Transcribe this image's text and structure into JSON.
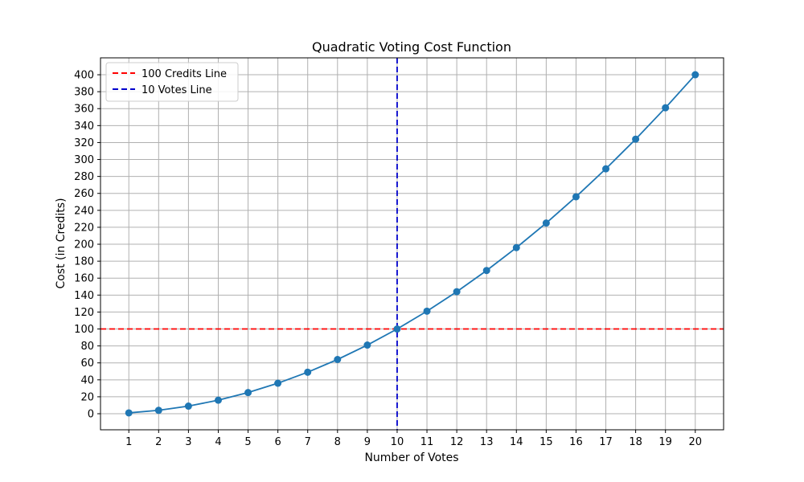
{
  "chart_data": {
    "type": "line",
    "title": "Quadratic Voting Cost Function",
    "xlabel": "Number of Votes",
    "ylabel": "Cost (in Credits)",
    "x": [
      1,
      2,
      3,
      4,
      5,
      6,
      7,
      8,
      9,
      10,
      11,
      12,
      13,
      14,
      15,
      16,
      17,
      18,
      19,
      20
    ],
    "series": [
      {
        "values": [
          1,
          4,
          9,
          16,
          25,
          36,
          49,
          64,
          81,
          100,
          121,
          144,
          169,
          196,
          225,
          256,
          289,
          324,
          361,
          400
        ],
        "color": "#1f77b4",
        "marker": "circle"
      }
    ],
    "reference_lines": [
      {
        "name": "100 Credits Line",
        "orientation": "horizontal",
        "value": 100,
        "color": "#ff0000",
        "style": "dashed"
      },
      {
        "name": "10 Votes Line",
        "orientation": "vertical",
        "value": 10,
        "color": "#0000cc",
        "style": "dashed"
      }
    ],
    "xticks": [
      "1",
      "2",
      "3",
      "4",
      "5",
      "6",
      "7",
      "8",
      "9",
      "10",
      "11",
      "12",
      "13",
      "14",
      "15",
      "16",
      "17",
      "18",
      "19",
      "20"
    ],
    "yticks": [
      "0",
      "20",
      "40",
      "60",
      "80",
      "100",
      "120",
      "140",
      "160",
      "180",
      "200",
      "220",
      "240",
      "260",
      "280",
      "300",
      "320",
      "340",
      "360",
      "380",
      "400"
    ],
    "xlim": [
      0.05,
      20.95
    ],
    "ylim": [
      -18.95,
      419.95
    ],
    "grid": true,
    "legend_position": "top-left"
  }
}
